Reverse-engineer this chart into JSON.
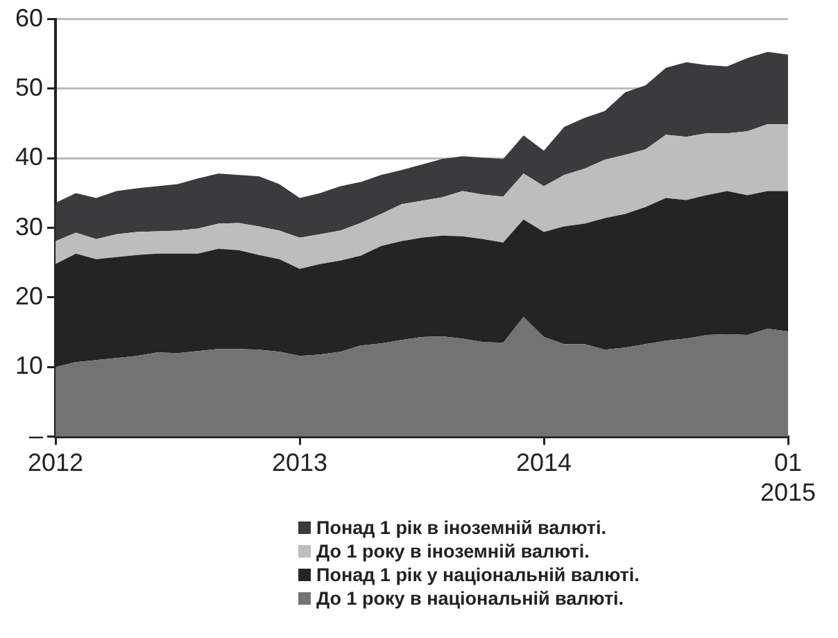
{
  "chart_data": {
    "type": "area",
    "stacked": true,
    "grid": "y",
    "legend": "bottom",
    "x": [
      "2012-01",
      "2012-02",
      "2012-03",
      "2012-04",
      "2012-05",
      "2012-06",
      "2012-07",
      "2012-08",
      "2012-09",
      "2012-10",
      "2012-11",
      "2012-12",
      "2013-01",
      "2013-02",
      "2013-03",
      "2013-04",
      "2013-05",
      "2013-06",
      "2013-07",
      "2013-08",
      "2013-09",
      "2013-10",
      "2013-11",
      "2013-12",
      "2014-01",
      "2014-02",
      "2014-03",
      "2014-04",
      "2014-05",
      "2014-06",
      "2014-07",
      "2014-08",
      "2014-09",
      "2014-10",
      "2014-11",
      "2014-12",
      "2015-01"
    ],
    "xlim": [
      "2012-01",
      "2015-01"
    ],
    "xticks": [
      {
        "value": "2012-01",
        "label": "2012"
      },
      {
        "value": "2013-01",
        "label": "2013"
      },
      {
        "value": "2014-01",
        "label": "2014"
      },
      {
        "value": "2015-01",
        "label": "01\n2015"
      }
    ],
    "ylim": [
      0,
      60
    ],
    "yticks": [
      {
        "value": 0,
        "label": "–"
      },
      10,
      20,
      30,
      40,
      50,
      60
    ],
    "series": [
      {
        "name": "До 1 року в національній валюті.",
        "color": "#737373",
        "values": [
          10.0,
          10.7,
          11.0,
          11.3,
          11.6,
          12.1,
          12.0,
          12.3,
          12.6,
          12.6,
          12.5,
          12.2,
          11.6,
          11.8,
          12.2,
          13.1,
          13.4,
          13.9,
          14.3,
          14.4,
          14.1,
          13.6,
          13.5,
          17.2,
          14.3,
          13.3,
          13.3,
          12.5,
          12.8,
          13.3,
          13.8,
          14.1,
          14.6,
          14.7,
          14.6,
          15.5,
          15.1
        ]
      },
      {
        "name": "Понад 1 рік у національній валюті.",
        "color": "#242424",
        "values": [
          14.8,
          15.6,
          14.5,
          14.5,
          14.5,
          14.2,
          14.3,
          14.0,
          14.4,
          14.2,
          13.6,
          13.3,
          12.5,
          13.0,
          13.1,
          12.9,
          14.0,
          14.2,
          14.3,
          14.5,
          14.7,
          14.8,
          14.4,
          14.0,
          15.1,
          16.9,
          17.3,
          18.9,
          19.2,
          19.7,
          20.5,
          19.9,
          20.1,
          20.6,
          20.1,
          19.8,
          20.2
        ]
      },
      {
        "name": "До 1 року в іноземній валюті.",
        "color": "#bdbdbd",
        "values": [
          3.3,
          3.0,
          2.9,
          3.3,
          3.3,
          3.2,
          3.3,
          3.6,
          3.6,
          3.9,
          4.1,
          4.1,
          4.5,
          4.3,
          4.3,
          4.7,
          4.6,
          5.3,
          5.3,
          5.5,
          6.5,
          6.4,
          6.6,
          6.6,
          6.6,
          7.4,
          7.9,
          8.4,
          8.5,
          8.3,
          9.1,
          9.1,
          8.9,
          8.3,
          9.2,
          9.6,
          9.6
        ]
      },
      {
        "name": "Понад 1 рік в іноземній валюті.",
        "color": "#3b3b3d",
        "values": [
          5.5,
          5.7,
          5.9,
          6.2,
          6.3,
          6.5,
          6.7,
          7.2,
          7.2,
          6.9,
          7.2,
          6.7,
          5.7,
          5.9,
          6.4,
          5.9,
          5.6,
          4.9,
          5.2,
          5.5,
          5.0,
          5.3,
          5.4,
          5.5,
          5.1,
          6.9,
          7.3,
          7.0,
          9.0,
          9.2,
          9.6,
          10.7,
          9.8,
          9.6,
          10.5,
          10.4,
          10.0
        ]
      }
    ]
  }
}
